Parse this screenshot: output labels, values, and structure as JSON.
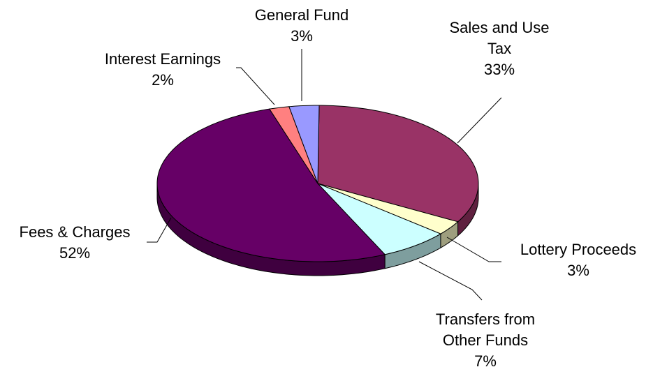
{
  "chart_data": {
    "type": "pie",
    "categories": [
      "Sales and Use Tax",
      "Lottery Proceeds",
      "Transfers from Other Funds",
      "Fees & Charges",
      "Interest Earnings",
      "General Fund"
    ],
    "values": [
      33,
      3,
      7,
      52,
      2,
      3
    ],
    "value_labels": [
      "33%",
      "3%",
      "7%",
      "52%",
      "2%",
      "3%"
    ],
    "colors": [
      "#993366",
      "#ffffcc",
      "#ccffff",
      "#660066",
      "#ff8080",
      "#9999ff"
    ]
  }
}
